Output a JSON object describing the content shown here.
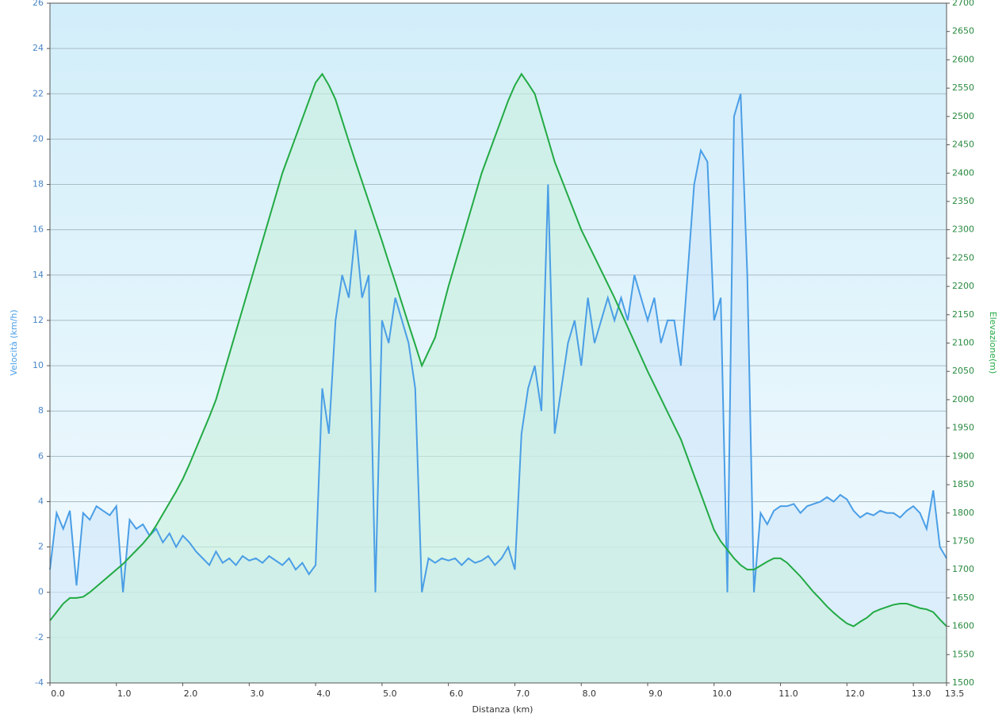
{
  "chart_data": {
    "type": "line",
    "x_label": "Distanza  (km)",
    "y_label": "Velocità (km/h)",
    "y2_label": "Elevazione(m)",
    "x": [
      0.0,
      0.1,
      0.2,
      0.3,
      0.4,
      0.5,
      0.6,
      0.7,
      0.8,
      0.9,
      1.0,
      1.1,
      1.2,
      1.3,
      1.4,
      1.5,
      1.6,
      1.7,
      1.8,
      1.9,
      2.0,
      2.1,
      2.2,
      2.3,
      2.4,
      2.5,
      2.6,
      2.7,
      2.8,
      2.9,
      3.0,
      3.1,
      3.2,
      3.3,
      3.4,
      3.5,
      3.6,
      3.7,
      3.8,
      3.9,
      4.0,
      4.1,
      4.2,
      4.3,
      4.4,
      4.5,
      4.6,
      4.7,
      4.8,
      4.9,
      5.0,
      5.1,
      5.2,
      5.3,
      5.4,
      5.5,
      5.6,
      5.7,
      5.8,
      5.9,
      6.0,
      6.1,
      6.2,
      6.3,
      6.4,
      6.5,
      6.6,
      6.7,
      6.8,
      6.9,
      7.0,
      7.1,
      7.2,
      7.3,
      7.4,
      7.5,
      7.6,
      7.7,
      7.8,
      7.9,
      8.0,
      8.1,
      8.2,
      8.3,
      8.4,
      8.5,
      8.6,
      8.7,
      8.8,
      8.9,
      9.0,
      9.1,
      9.2,
      9.3,
      9.4,
      9.5,
      9.6,
      9.7,
      9.8,
      9.9,
      10.0,
      10.1,
      10.2,
      10.3,
      10.4,
      10.5,
      10.6,
      10.7,
      10.8,
      10.9,
      11.0,
      11.1,
      11.2,
      11.3,
      11.4,
      11.5,
      11.6,
      11.7,
      11.8,
      11.9,
      12.0,
      12.1,
      12.2,
      12.3,
      12.4,
      12.5,
      12.6,
      12.7,
      12.8,
      12.9,
      13.0,
      13.1,
      13.2,
      13.3,
      13.4,
      13.5
    ],
    "series": [
      {
        "name": "Velocità (km/h)",
        "color": "#4a9ee6",
        "fill": "#cfe6fa",
        "axis": "y",
        "values": [
          1,
          3.5,
          2.8,
          3.6,
          0.3,
          3.5,
          3.2,
          3.8,
          3.6,
          3.4,
          3.8,
          0,
          3.2,
          2.8,
          3.0,
          2.5,
          2.8,
          2.2,
          2.6,
          2.0,
          2.5,
          2.2,
          1.8,
          1.5,
          1.2,
          1.8,
          1.3,
          1.5,
          1.2,
          1.6,
          1.4,
          1.5,
          1.3,
          1.6,
          1.4,
          1.2,
          1.5,
          1.0,
          1.3,
          0.8,
          1.2,
          9,
          7,
          12,
          14,
          13,
          16,
          13,
          14,
          0,
          12,
          11,
          13,
          12,
          11,
          9,
          0,
          1.5,
          1.3,
          1.5,
          1.4,
          1.5,
          1.2,
          1.5,
          1.3,
          1.4,
          1.6,
          1.2,
          1.5,
          2,
          1,
          7,
          9,
          10,
          8,
          18,
          7,
          9,
          11,
          12,
          10,
          13,
          11,
          12,
          13,
          12,
          13,
          12,
          14,
          13,
          12,
          13,
          11,
          12,
          12,
          10,
          14,
          18,
          19.5,
          19,
          12,
          13,
          0,
          21,
          22,
          14,
          0,
          3.5,
          3.0,
          3.6,
          3.8,
          3.8,
          3.9,
          3.5,
          3.8,
          3.9,
          4.0,
          4.2,
          4.0,
          4.3,
          4.1,
          3.6,
          3.3,
          3.5,
          3.4,
          3.6,
          3.5,
          3.5,
          3.3,
          3.6,
          3.8,
          3.5,
          2.8,
          4.5,
          2.0,
          1.5
        ]
      },
      {
        "name": "Elevazione(m)",
        "color": "#22aa44",
        "fill": "#c8f0dc",
        "axis": "y2",
        "values": [
          1610,
          1625,
          1640,
          1650,
          1650,
          1652,
          1660,
          1670,
          1680,
          1690,
          1700,
          1710,
          1722,
          1734,
          1746,
          1760,
          1778,
          1798,
          1818,
          1838,
          1860,
          1886,
          1914,
          1942,
          1970,
          2000,
          2040,
          2080,
          2120,
          2160,
          2200,
          2240,
          2280,
          2320,
          2360,
          2400,
          2432,
          2464,
          2496,
          2528,
          2560,
          2575,
          2555,
          2530,
          2493,
          2456,
          2420,
          2385,
          2350,
          2315,
          2280,
          2243,
          2207,
          2170,
          2133,
          2097,
          2060,
          2085,
          2110,
          2155,
          2200,
          2240,
          2280,
          2320,
          2360,
          2400,
          2432,
          2464,
          2496,
          2528,
          2555,
          2575,
          2558,
          2540,
          2500,
          2460,
          2420,
          2390,
          2360,
          2330,
          2300,
          2276,
          2252,
          2228,
          2204,
          2180,
          2154,
          2128,
          2102,
          2076,
          2050,
          2026,
          2002,
          1978,
          1954,
          1930,
          1898,
          1866,
          1834,
          1802,
          1770,
          1750,
          1735,
          1720,
          1708,
          1700,
          1700,
          1707,
          1714,
          1720,
          1720,
          1712,
          1700,
          1688,
          1674,
          1660,
          1648,
          1635,
          1624,
          1614,
          1605,
          1600,
          1608,
          1615,
          1625,
          1630,
          1634,
          1638,
          1640,
          1640,
          1636,
          1632,
          1630,
          1625,
          1612,
          1600
        ]
      }
    ],
    "xlim": [
      0,
      13.5
    ],
    "xticks": [
      {
        "value": 0,
        "label": "0.0"
      },
      {
        "value": 1,
        "label": "1.0"
      },
      {
        "value": 2,
        "label": "2.0"
      },
      {
        "value": 3,
        "label": "3.0"
      },
      {
        "value": 4,
        "label": "4.0"
      },
      {
        "value": 5,
        "label": "5.0"
      },
      {
        "value": 6,
        "label": "6.0"
      },
      {
        "value": 7,
        "label": "7.0"
      },
      {
        "value": 8,
        "label": "8.0"
      },
      {
        "value": 9,
        "label": "9.0"
      },
      {
        "value": 10,
        "label": "10.0"
      },
      {
        "value": 11,
        "label": "11.0"
      },
      {
        "value": 12,
        "label": "12.0"
      },
      {
        "value": 13,
        "label": "13.0"
      },
      13.5
    ],
    "ylim": [
      -4,
      26
    ],
    "yticks": [
      -4,
      -2,
      0,
      2,
      4,
      6,
      8,
      10,
      12,
      14,
      16,
      18,
      20,
      22,
      24,
      26
    ],
    "y2lim": [
      1500,
      2700
    ],
    "y2ticks": [
      1500,
      1550,
      1600,
      1650,
      1700,
      1750,
      1800,
      1850,
      1900,
      1950,
      2000,
      2050,
      2100,
      2150,
      2200,
      2250,
      2300,
      2350,
      2400,
      2450,
      2500,
      2550,
      2600,
      2650,
      2700
    ],
    "grid": true
  }
}
